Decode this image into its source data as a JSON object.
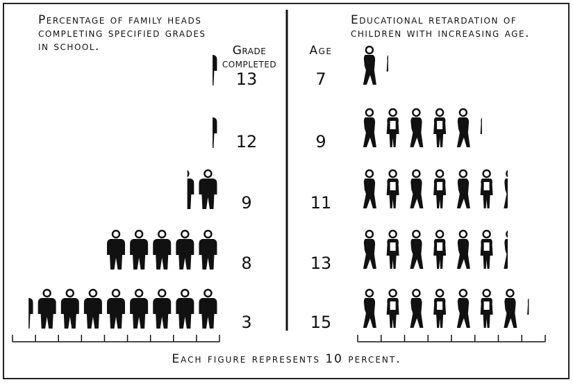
{
  "chart_data": [
    {
      "type": "pictograph",
      "title": "Percentage of family heads completing specified grades in school.",
      "axis_label": "Grade completed",
      "categories": [
        "13",
        "12",
        "9",
        "8",
        "3"
      ],
      "values": [
        3,
        3,
        14,
        50,
        83
      ],
      "xlim": [
        0,
        90
      ],
      "xticks": [
        0,
        10,
        20,
        30,
        40,
        50,
        60,
        70,
        80,
        90
      ],
      "x_reversed": true,
      "color": "#111111"
    },
    {
      "type": "pictograph",
      "title": "Educational retardation of children with increasing age.",
      "axis_label": "Age",
      "categories": [
        "7",
        "9",
        "11",
        "13",
        "15"
      ],
      "values": [
        13,
        53,
        64,
        64,
        73
      ],
      "xlim": [
        0,
        80
      ],
      "xticks": [
        0,
        10,
        20,
        30,
        40,
        50,
        60,
        70,
        80
      ],
      "x_reversed": false,
      "color": "#111111"
    }
  ],
  "footnote": "Each figure represents 10 percent."
}
